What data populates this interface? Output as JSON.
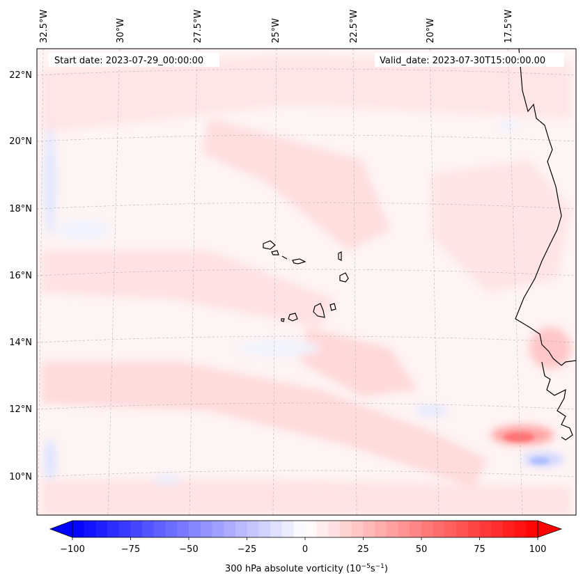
{
  "map": {
    "start_date": "Start date: 2023-07-29_00:00:00",
    "valid_date": "Valid_date: 2023-07-30T15:00:00.00",
    "lon_labels": [
      "32.5°W",
      "30°W",
      "27.5°W",
      "25°W",
      "22.5°W",
      "20°W",
      "17.5°W"
    ],
    "lat_labels": [
      "22°N",
      "20°N",
      "18°N",
      "16°N",
      "14°N",
      "12°N",
      "10°N"
    ],
    "gridlines": true
  },
  "colorbar": {
    "label": "300 hPa absolute vorticity (10",
    "label_exp1": "−5",
    "label_mid": "s",
    "label_exp2": "−1",
    "label_end": ")",
    "tick_labels": [
      "−100",
      "−75",
      "−50",
      "−25",
      "0",
      "25",
      "50",
      "75",
      "100"
    ],
    "range": [
      -100,
      100
    ],
    "colors": {
      "min": "#0000ff",
      "mid": "#ffffff",
      "max": "#ff0000"
    }
  },
  "colors": {
    "coastline": "#000000",
    "gridline": "#b0b0b0"
  }
}
